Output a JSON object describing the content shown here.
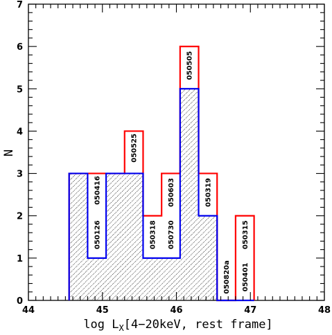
{
  "chart_data": {
    "type": "histogram",
    "xlabel": {
      "main": "log L",
      "sub": "X",
      "rest": "[4−20keV, rest frame]"
    },
    "ylabel": "N",
    "xlim": [
      44,
      48
    ],
    "ylim": [
      0,
      7
    ],
    "x_ticks": [
      "44",
      "45",
      "46",
      "47",
      "48"
    ],
    "y_ticks": [
      "0",
      "1",
      "2",
      "3",
      "4",
      "5",
      "6",
      "7"
    ],
    "bin_edges": [
      44.55,
      44.8,
      45.05,
      45.3,
      45.55,
      45.8,
      46.05,
      46.3,
      46.55,
      46.8,
      47.05
    ],
    "series": [
      {
        "role": "total",
        "color": "#ff0000",
        "values": [
          3,
          3,
          3,
          4,
          2,
          3,
          6,
          3,
          0,
          2
        ]
      },
      {
        "role": "subset",
        "color": "#0000ee",
        "hatched": true,
        "values": [
          3,
          1,
          3,
          3,
          1,
          1,
          5,
          2,
          0,
          0
        ]
      }
    ],
    "annotations": [
      {
        "text": "050416",
        "x": 44.93,
        "y": 2.6
      },
      {
        "text": "050126",
        "x": 44.93,
        "y": 1.55
      },
      {
        "text": "050525",
        "x": 45.43,
        "y": 3.6
      },
      {
        "text": "050318",
        "x": 45.68,
        "y": 1.55
      },
      {
        "text": "050603",
        "x": 45.93,
        "y": 2.55
      },
      {
        "text": "050730",
        "x": 45.93,
        "y": 1.55
      },
      {
        "text": "050505",
        "x": 46.18,
        "y": 5.55
      },
      {
        "text": "050319",
        "x": 46.43,
        "y": 2.55
      },
      {
        "text": "050820a",
        "x": 46.68,
        "y": 0.55
      },
      {
        "text": "050315",
        "x": 46.93,
        "y": 1.55
      },
      {
        "text": "050401",
        "x": 46.93,
        "y": 0.55
      }
    ]
  }
}
